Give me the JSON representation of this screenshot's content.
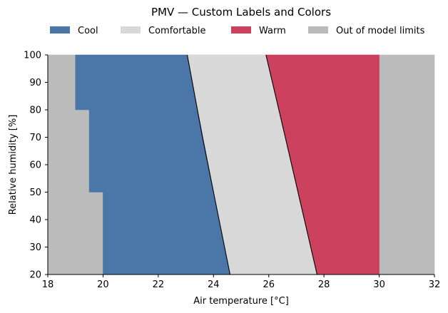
{
  "chart_data": {
    "type": "area",
    "title": "PMV — Custom Labels and Colors",
    "xlabel": "Air temperature [°C]",
    "ylabel": "Relative humidity [%]",
    "xlim": [
      18,
      32
    ],
    "ylim": [
      20,
      100
    ],
    "xticks": [
      18,
      20,
      22,
      24,
      26,
      28,
      30,
      32
    ],
    "yticks": [
      20,
      30,
      40,
      50,
      60,
      70,
      80,
      90,
      100
    ],
    "legend_position": "top",
    "legend": [
      {
        "label": "Cool",
        "color": "#4a77a8"
      },
      {
        "label": "Comfortable",
        "color": "#d8d8d8"
      },
      {
        "label": "Warm",
        "color": "#cc415e"
      },
      {
        "label": "Out of model limits",
        "color": "#bbbbbb"
      }
    ],
    "regions": [
      {
        "label": "Out of model limits",
        "color": "#bbbbbb",
        "points": [
          [
            18,
            20
          ],
          [
            32,
            20
          ],
          [
            32,
            100
          ],
          [
            18,
            100
          ]
        ]
      },
      {
        "label": "Cool",
        "color": "#4a77a8",
        "points": [
          [
            19,
            100
          ],
          [
            23.05,
            100
          ],
          [
            24.6,
            20
          ],
          [
            20,
            20
          ],
          [
            20,
            50
          ],
          [
            19.5,
            50
          ],
          [
            19.5,
            80
          ],
          [
            19,
            80
          ]
        ]
      },
      {
        "label": "Comfortable",
        "color": "#d8d8d8",
        "points": [
          [
            23.05,
            100
          ],
          [
            25.9,
            100
          ],
          [
            27.75,
            20
          ],
          [
            24.6,
            20
          ]
        ]
      },
      {
        "label": "Warm",
        "color": "#cc415e",
        "points": [
          [
            25.9,
            100
          ],
          [
            30,
            100
          ],
          [
            30,
            20
          ],
          [
            27.75,
            20
          ]
        ]
      }
    ],
    "boundaries": [
      {
        "name": "cool-comfortable",
        "points": [
          [
            23.05,
            100
          ],
          [
            23.6,
            70
          ],
          [
            24.6,
            20
          ]
        ]
      },
      {
        "name": "comfortable-warm",
        "points": [
          [
            25.9,
            100
          ],
          [
            26.6,
            70
          ],
          [
            27.75,
            20
          ]
        ]
      }
    ]
  }
}
